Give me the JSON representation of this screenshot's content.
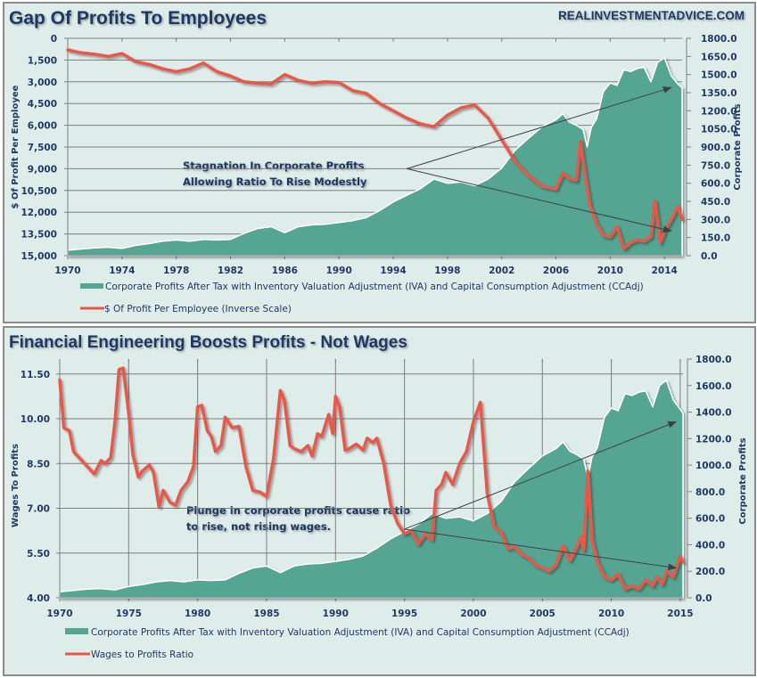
{
  "colors": {
    "background": "#deecea",
    "area_fill": "#55a593",
    "area_edge": "#ffffff",
    "line": "#e8584a",
    "text": "#1f3864",
    "grid": "#7f7f7f",
    "arrow": "#404040"
  },
  "watermark": "REALINVESTMENTADVICE.COM",
  "chart_data": [
    {
      "type": "line",
      "title": "Gap Of Profits To Employees",
      "ylabel": "$ Of Profit Per Employee",
      "y2label": "Corporate Profits",
      "x_ticks": [
        "1970",
        "1974",
        "1978",
        "1982",
        "1986",
        "1990",
        "1994",
        "1998",
        "2002",
        "2006",
        "2010",
        "2014"
      ],
      "xlim": [
        1970,
        2015.3
      ],
      "y_ticks": [
        "0",
        "1,500",
        "3,000",
        "4,500",
        "6,000",
        "7,500",
        "9,000",
        "10,500",
        "12,000",
        "13,500",
        "15,000"
      ],
      "ylim": [
        0,
        15000
      ],
      "y_inverted": true,
      "y2_ticks": [
        "1800.0",
        "1650.0",
        "1500.0",
        "1350.0",
        "1200.0",
        "1050.0",
        "900.0",
        "750.0",
        "600.0",
        "450.0",
        "300.0",
        "150.0",
        "0.0"
      ],
      "y2lim": [
        0,
        1800
      ],
      "grid": "horizontal",
      "legend_position": "bottom",
      "annotation": [
        "Stagnation In Corporate Profits",
        "Allowing Ratio To Rise Modestly"
      ],
      "series": [
        {
          "name": "Corporate Profits After Tax with Inventory Valuation Adjustment (IVA) and Capital Consumption Adjustment (CCAdj)",
          "type": "area",
          "axis": "right",
          "x": [
            1970,
            1971,
            1972,
            1973,
            1974,
            1975,
            1976,
            1977,
            1978,
            1979,
            1980,
            1981,
            1982,
            1983,
            1984,
            1985,
            1986,
            1987,
            1988,
            1989,
            1990,
            1991,
            1992,
            1993,
            1994,
            1995,
            1996,
            1997,
            1998,
            1999,
            2000,
            2001,
            2002,
            2003,
            2004,
            2005,
            2006,
            2006.5,
            2007,
            2007.5,
            2008,
            2008.3,
            2008.6,
            2009,
            2009.5,
            2010,
            2010.5,
            2011,
            2011.5,
            2012,
            2012.5,
            2013,
            2013.5,
            2014,
            2014.5,
            2015,
            2015.3
          ],
          "values": [
            45,
            55,
            65,
            70,
            60,
            85,
            100,
            120,
            130,
            120,
            135,
            130,
            135,
            185,
            225,
            240,
            190,
            240,
            255,
            260,
            275,
            290,
            315,
            375,
            445,
            500,
            555,
            635,
            600,
            610,
            580,
            635,
            725,
            875,
            975,
            1070,
            1125,
            1175,
            1105,
            1080,
            1045,
            900,
            1060,
            1135,
            1360,
            1430,
            1410,
            1540,
            1525,
            1550,
            1560,
            1440,
            1600,
            1640,
            1490,
            1420,
            1390
          ]
        },
        {
          "name": "$ Of Profit Per Employee (Inverse Scale)",
          "type": "line",
          "axis": "left",
          "x": [
            1970,
            1971,
            1972,
            1973,
            1974,
            1975,
            1976,
            1977,
            1978,
            1979,
            1980,
            1981,
            1982,
            1983,
            1984,
            1985,
            1986,
            1987,
            1988,
            1989,
            1990,
            1991,
            1992,
            1993,
            1994,
            1995,
            1996,
            1997,
            1998,
            1999,
            2000,
            2001,
            2002,
            2003,
            2004,
            2005,
            2006,
            2006.5,
            2007,
            2007.5,
            2007.8,
            2008,
            2008.5,
            2009,
            2009.5,
            2010,
            2010.5,
            2011,
            2011.5,
            2012,
            2012.5,
            2013,
            2013.3,
            2013.7,
            2014,
            2014.5,
            2015,
            2015.3
          ],
          "values": [
            800,
            1000,
            1100,
            1250,
            1050,
            1600,
            1800,
            2100,
            2300,
            2100,
            1700,
            2300,
            2600,
            3000,
            3100,
            3150,
            2500,
            2900,
            3100,
            3000,
            3050,
            3600,
            3800,
            4500,
            5000,
            5500,
            5900,
            6100,
            5300,
            4800,
            4600,
            5500,
            7000,
            8500,
            9500,
            10200,
            10400,
            9300,
            9700,
            9800,
            7100,
            8500,
            11500,
            12800,
            13600,
            13700,
            13000,
            14500,
            14100,
            13900,
            14000,
            13700,
            11200,
            14100,
            13300,
            12500,
            11600,
            12500
          ]
        }
      ],
      "arrows": [
        {
          "from": [
            1995,
            9000
          ],
          "to": [
            2014.5,
            3400
          ]
        },
        {
          "from": [
            1995,
            9000
          ],
          "to": [
            2014.5,
            13300
          ]
        }
      ]
    },
    {
      "type": "line",
      "title": "Financial Engineering Boosts Profits - Not Wages",
      "ylabel": "Wages To Profits",
      "y2label": "Corporate Profits",
      "x_ticks": [
        "1970",
        "1975",
        "1980",
        "1985",
        "1990",
        "1995",
        "2000",
        "2005",
        "2010",
        "2015"
      ],
      "xlim": [
        1970,
        2015.2
      ],
      "y_ticks": [
        "11.50",
        "10.00",
        "8.50",
        "7.00",
        "5.50",
        "4.00"
      ],
      "ylim": [
        4.0,
        12.0
      ],
      "y2_ticks": [
        "1800.0",
        "1600.0",
        "1400.0",
        "1200.0",
        "1000.0",
        "800.0",
        "600.0",
        "400.0",
        "200.0",
        "0.0"
      ],
      "y2lim": [
        0,
        1800
      ],
      "grid": "both",
      "legend_position": "bottom",
      "annotation": [
        "Plunge in corporate profits cause ratio",
        "to rise, not rising wages."
      ],
      "series": [
        {
          "name": "Corporate Profits After Tax with Inventory Valuation Adjustment (IVA) and Capital Consumption Adjustment (CCAdj)",
          "type": "area",
          "axis": "right",
          "x": [
            1970,
            1971,
            1972,
            1973,
            1974,
            1975,
            1976,
            1977,
            1978,
            1979,
            1980,
            1981,
            1982,
            1983,
            1984,
            1985,
            1986,
            1987,
            1988,
            1989,
            1990,
            1991,
            1992,
            1993,
            1994,
            1995,
            1996,
            1997,
            1998,
            1999,
            2000,
            2001,
            2002,
            2003,
            2004,
            2005,
            2006,
            2006.5,
            2007,
            2007.5,
            2008,
            2008.3,
            2008.6,
            2009,
            2009.5,
            2010,
            2010.5,
            2011,
            2011.5,
            2012,
            2012.5,
            2013,
            2013.5,
            2014,
            2014.5,
            2015,
            2015.2
          ],
          "values": [
            45,
            55,
            65,
            70,
            60,
            85,
            100,
            120,
            130,
            120,
            135,
            130,
            135,
            185,
            225,
            240,
            190,
            240,
            255,
            260,
            275,
            290,
            315,
            375,
            445,
            500,
            555,
            635,
            600,
            610,
            580,
            635,
            725,
            875,
            975,
            1070,
            1125,
            1175,
            1105,
            1080,
            1045,
            900,
            1060,
            1135,
            1360,
            1430,
            1410,
            1540,
            1525,
            1550,
            1560,
            1440,
            1600,
            1640,
            1490,
            1420,
            1390
          ]
        },
        {
          "name": "Wages to Profits Ratio",
          "type": "line",
          "axis": "left",
          "x": [
            1970,
            1970.3,
            1970.7,
            1971,
            1971.5,
            1972,
            1972.5,
            1973,
            1973.3,
            1973.7,
            1974,
            1974.3,
            1974.6,
            1975,
            1975.3,
            1975.7,
            1976,
            1976.5,
            1976.8,
            1977.2,
            1977.5,
            1978,
            1978.4,
            1978.8,
            1979.3,
            1979.7,
            1980,
            1980.3,
            1980.7,
            1981,
            1981.3,
            1981.7,
            1982,
            1982.5,
            1983,
            1983.5,
            1984,
            1984.5,
            1985,
            1985.5,
            1986,
            1986.3,
            1986.7,
            1987,
            1987.5,
            1988,
            1988.3,
            1988.7,
            1989,
            1989.5,
            1989.8,
            1990,
            1990.3,
            1990.7,
            1991,
            1991.5,
            1992,
            1992.3,
            1992.7,
            1993,
            1993.5,
            1994,
            1994.5,
            1995,
            1995.5,
            1996,
            1996.5,
            1997,
            1997.3,
            1997.7,
            1998,
            1998.5,
            1999,
            1999.5,
            2000,
            2000.5,
            2001,
            2001.5,
            2002,
            2002.5,
            2003,
            2003.5,
            2004,
            2004.5,
            2005,
            2005.5,
            2006,
            2006.5,
            2007,
            2007.5,
            2007.8,
            2008,
            2008.3,
            2008.6,
            2009,
            2009.5,
            2010,
            2010.5,
            2011,
            2011.5,
            2012,
            2012.5,
            2013,
            2013.3,
            2013.7,
            2014,
            2014.5,
            2015,
            2015.2
          ],
          "values": [
            11.3,
            9.7,
            9.6,
            8.9,
            8.65,
            8.4,
            8.15,
            8.6,
            8.5,
            8.7,
            9.9,
            11.65,
            11.7,
            10.2,
            8.8,
            8.05,
            8.25,
            8.45,
            8.2,
            7.05,
            7.6,
            7.2,
            7.1,
            7.6,
            7.9,
            8.4,
            10.4,
            10.45,
            9.6,
            9.4,
            8.9,
            9.1,
            10.05,
            9.7,
            9.75,
            8.4,
            7.6,
            7.55,
            7.4,
            8.65,
            10.95,
            10.6,
            9.1,
            9.0,
            8.9,
            9.1,
            8.75,
            9.5,
            9.4,
            10.15,
            9.5,
            10.75,
            10.4,
            8.95,
            9.0,
            9.15,
            8.95,
            9.35,
            9.2,
            9.35,
            8.5,
            7.1,
            6.5,
            6.15,
            6.25,
            5.8,
            6.15,
            5.95,
            7.6,
            7.8,
            8.2,
            7.8,
            8.5,
            8.9,
            9.9,
            10.55,
            7.5,
            6.4,
            6.2,
            5.65,
            5.7,
            5.45,
            5.35,
            5.1,
            5.0,
            4.9,
            5.1,
            5.75,
            5.25,
            5.7,
            6.05,
            5.6,
            8.25,
            5.95,
            5.2,
            4.7,
            4.6,
            4.8,
            4.3,
            4.4,
            4.3,
            4.6,
            4.4,
            4.7,
            4.45,
            4.9,
            4.7,
            5.4,
            5.2
          ]
        }
      ],
      "arrows": [
        {
          "from": [
            1995,
            6.3
          ],
          "to": [
            2014.7,
            9.9
          ]
        },
        {
          "from": [
            1995,
            6.3
          ],
          "to": [
            2014.7,
            5.0
          ]
        }
      ]
    }
  ]
}
